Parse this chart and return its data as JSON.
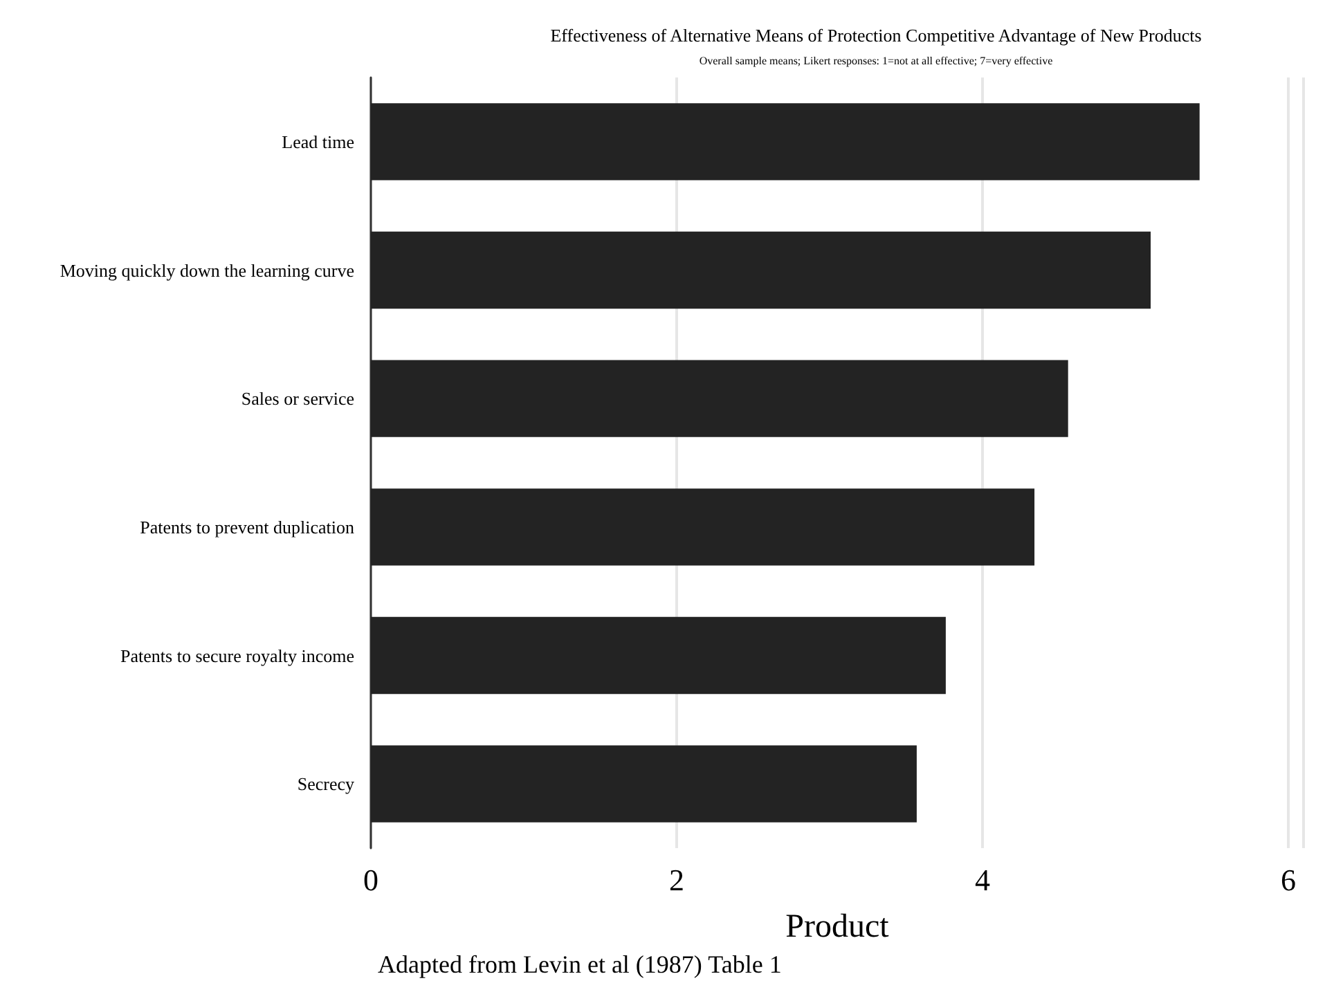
{
  "chart_data": {
    "type": "bar",
    "orientation": "horizontal",
    "title": "Effectiveness of Alternative Means of Protection Competitive Advantage of New Products",
    "subtitle": "Overall sample means; Likert responses: 1=not at all effective; 7=very effective",
    "xlabel": "Product",
    "annotations": [
      "Adapted from Levin et al (1987) Table 1"
    ],
    "categories": [
      "Lead time",
      "Moving quickly down the learning curve",
      "Sales or service",
      "Patents to prevent duplication",
      "Patents to secure royalty income",
      "Secrecy"
    ],
    "values": [
      5.42,
      5.1,
      4.56,
      4.34,
      3.76,
      3.57
    ],
    "color": "#232323",
    "xlim": [
      0,
      6.1
    ],
    "xticks": [
      0,
      2,
      4,
      6
    ],
    "grid": "x"
  }
}
